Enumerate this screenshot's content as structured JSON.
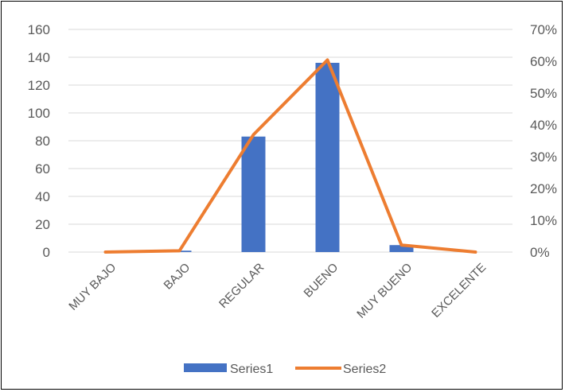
{
  "chart_data": {
    "type": "bar",
    "categories": [
      "MUY BAJO",
      "BAJO",
      "REGULAR",
      "BUENO",
      "MUY BUENO",
      "EXCELENTE"
    ],
    "series": [
      {
        "name": "Series1",
        "chart": "bar",
        "axis": "left",
        "values": [
          0,
          1,
          83,
          136,
          5,
          0
        ],
        "color": "#4472C4"
      },
      {
        "name": "Series2",
        "chart": "line",
        "axis": "right",
        "values": [
          0.0,
          0.4,
          36.9,
          60.4,
          2.2,
          0.0
        ],
        "color": "#ED7D31"
      }
    ],
    "y_left": {
      "ticks": [
        "0",
        "20",
        "40",
        "60",
        "80",
        "100",
        "120",
        "140",
        "160"
      ],
      "min": 0,
      "max": 160
    },
    "y_right": {
      "ticks": [
        "0%",
        "10%",
        "20%",
        "30%",
        "40%",
        "50%",
        "60%",
        "70%"
      ],
      "min": 0,
      "max": 70,
      "unit": "%"
    },
    "grid": true,
    "legend_position": "bottom"
  }
}
